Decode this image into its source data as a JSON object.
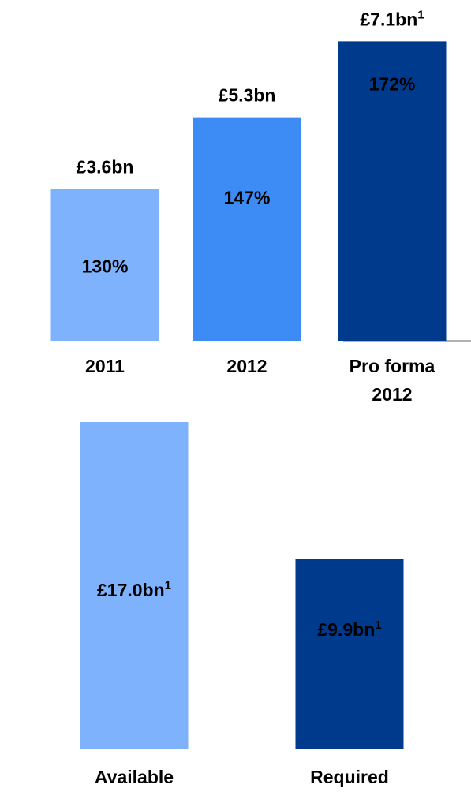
{
  "chart_data": [
    {
      "type": "bar",
      "categories": [
        "2011",
        "2012",
        [
          "Pro forma",
          "2012"
        ]
      ],
      "values": [
        3.6,
        5.3,
        7.1
      ],
      "value_labels": [
        "£3.6bn",
        "£5.3bn",
        "£7.1bn"
      ],
      "footnotes": [
        null,
        null,
        "1"
      ],
      "annotations": [
        "130%",
        "147%",
        "172%"
      ],
      "colors": [
        "#7fb2fc",
        "#3d8bf5",
        "#003a8c"
      ],
      "ylim": [
        0,
        7.5
      ]
    },
    {
      "type": "bar",
      "categories": [
        [
          "Available"
        ],
        [
          "Required"
        ]
      ],
      "values": [
        17.0,
        9.9
      ],
      "value_labels": [
        "£17.0bn",
        "£9.9bn"
      ],
      "footnotes": [
        "1",
        "1"
      ],
      "colors": [
        "#7fb2fc",
        "#003a8c"
      ],
      "ylim": [
        0,
        17
      ]
    }
  ]
}
